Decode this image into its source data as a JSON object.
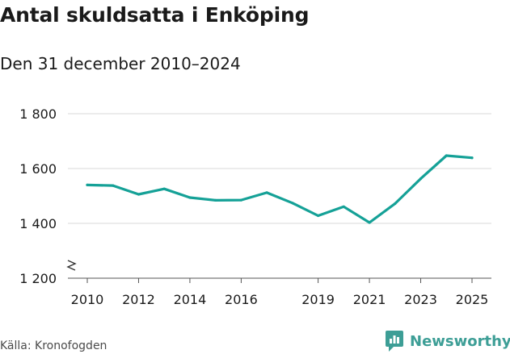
{
  "title": "Antal skuldsatta i Enköping",
  "subtitle": "Den 31 december 2010–2024",
  "source": "Källa: Kronofogden",
  "brand": "Newsworthy",
  "colors": {
    "line": "#15a197",
    "brand": "#3d9e96",
    "grid": "#d9d9d9"
  },
  "chart_data": {
    "type": "line",
    "title": "Antal skuldsatta i Enköping",
    "subtitle": "Den 31 december 2010–2024",
    "xlabel": "",
    "ylabel": "",
    "x": [
      2010,
      2011,
      2012,
      2013,
      2014,
      2015,
      2016,
      2017,
      2018,
      2019,
      2020,
      2021,
      2022,
      2023,
      2024,
      2025
    ],
    "values": [
      1540,
      1538,
      1506,
      1526,
      1494,
      1484,
      1485,
      1512,
      1474,
      1428,
      1461,
      1403,
      1472,
      1563,
      1647,
      1639
    ],
    "ylim": [
      1200,
      1800
    ],
    "y_ticks": [
      1200,
      1400,
      1600,
      1800
    ],
    "y_tick_labels": [
      "1 200",
      "1 400",
      "1 600",
      "1 800"
    ],
    "x_ticks": [
      2010,
      2012,
      2014,
      2016,
      2019,
      2021,
      2023,
      2025
    ],
    "x_tick_labels": [
      "2010",
      "2012",
      "2014",
      "2016",
      "2019",
      "2021",
      "2023",
      "2025"
    ],
    "y_axis_break": true,
    "grid": "horizontal",
    "legend": "none"
  }
}
